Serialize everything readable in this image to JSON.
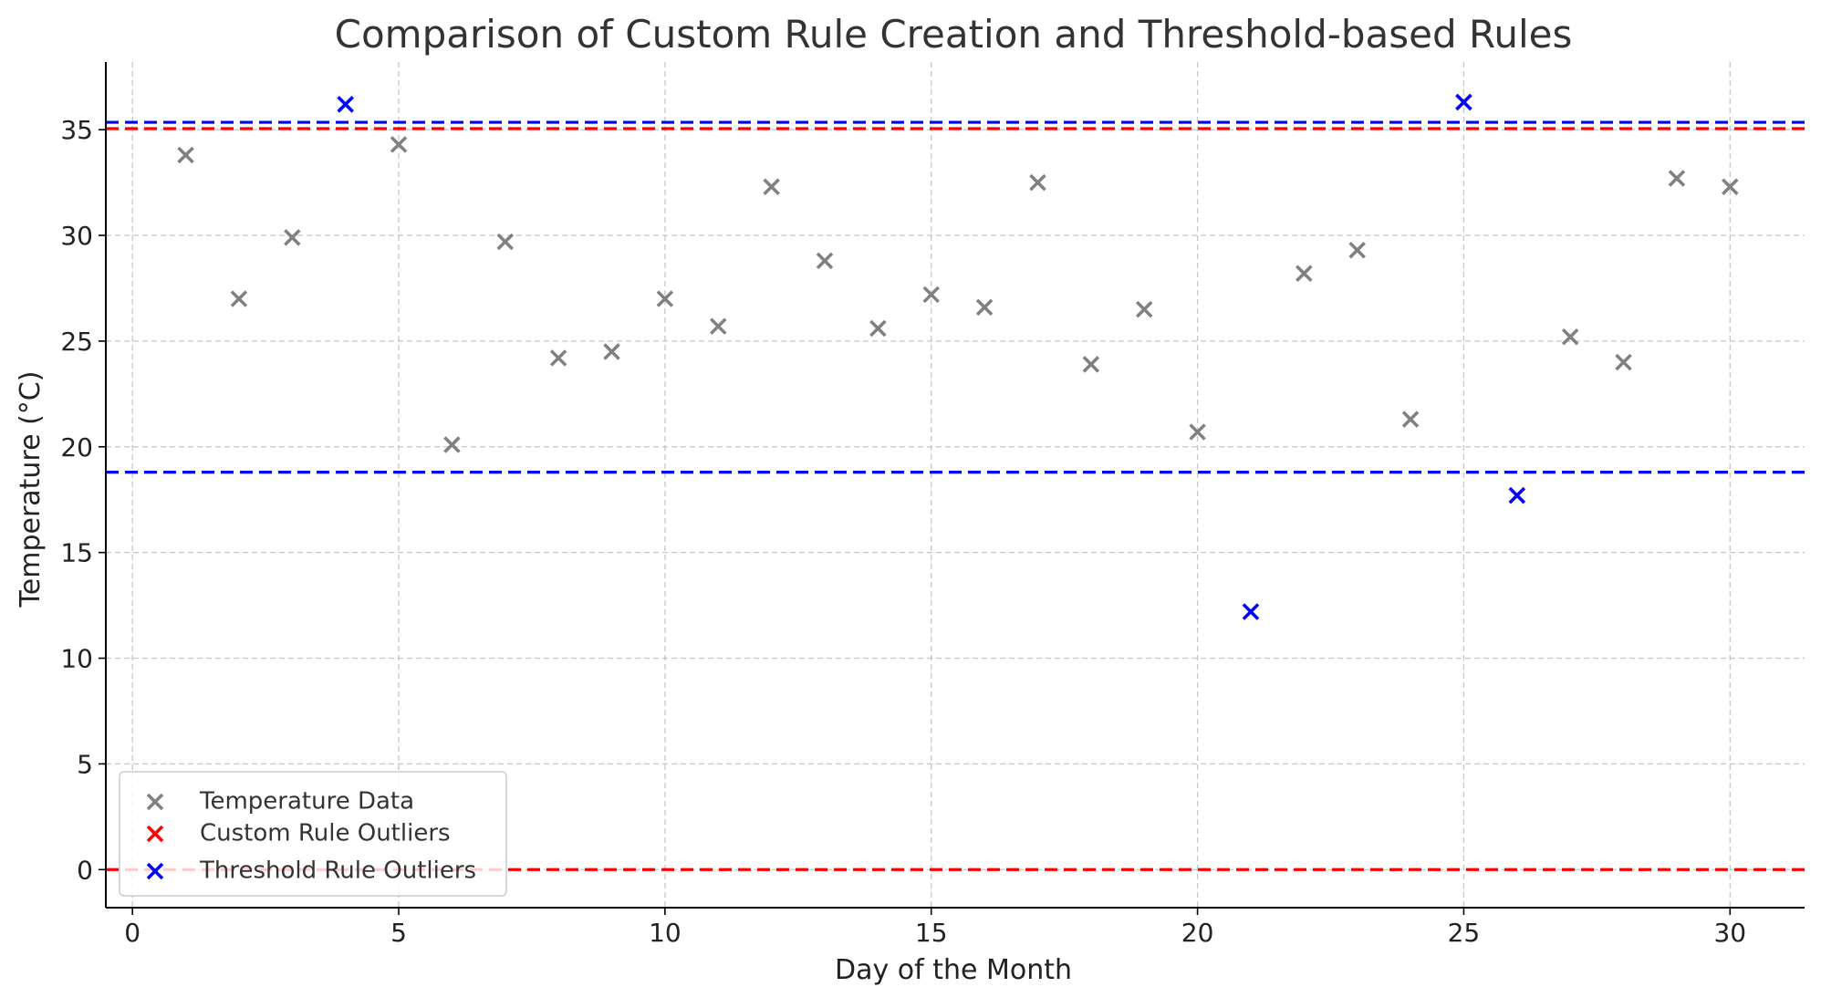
{
  "chart_data": {
    "type": "scatter",
    "title": "Comparison of Custom Rule Creation and Threshold-based Rules",
    "xlabel": "Day of the Month",
    "ylabel": "Temperature (°C)",
    "xlim": [
      -0.5,
      31.4
    ],
    "ylim": [
      -1.8,
      38.2
    ],
    "xticks": [
      0,
      5,
      10,
      15,
      20,
      25,
      30
    ],
    "yticks": [
      0,
      5,
      10,
      15,
      20,
      25,
      30,
      35
    ],
    "grid": true,
    "legend_position": "lower-left",
    "series": [
      {
        "name": "Temperature Data",
        "marker": "x",
        "color": "#808080",
        "x": [
          1,
          2,
          3,
          4,
          5,
          6,
          7,
          8,
          9,
          10,
          11,
          12,
          13,
          14,
          15,
          16,
          17,
          18,
          19,
          20,
          21,
          22,
          23,
          24,
          25,
          26,
          27,
          28,
          29,
          30
        ],
        "y": [
          33.8,
          27.0,
          29.9,
          36.2,
          34.3,
          20.1,
          29.7,
          24.2,
          24.5,
          27.0,
          25.7,
          32.3,
          28.8,
          25.6,
          27.2,
          26.6,
          32.5,
          23.9,
          26.5,
          20.7,
          12.2,
          28.2,
          29.3,
          21.3,
          36.3,
          17.7,
          25.2,
          24.0,
          32.7,
          32.3
        ]
      },
      {
        "name": "Custom Rule Outliers",
        "marker": "x",
        "color": "#ff0000",
        "x": [],
        "y": []
      },
      {
        "name": "Threshold Rule Outliers",
        "marker": "x",
        "color": "#0000ff",
        "x": [
          4,
          21,
          25,
          26
        ],
        "y": [
          36.2,
          12.2,
          36.3,
          17.7
        ]
      }
    ],
    "reference_lines": [
      {
        "y": 35.05,
        "color": "#ff0000",
        "style": "dashed"
      },
      {
        "y": 0,
        "color": "#ff0000",
        "style": "dashed"
      },
      {
        "y": 35.35,
        "color": "#0000ff",
        "style": "dashed"
      },
      {
        "y": 18.8,
        "color": "#0000ff",
        "style": "dashed"
      }
    ]
  }
}
